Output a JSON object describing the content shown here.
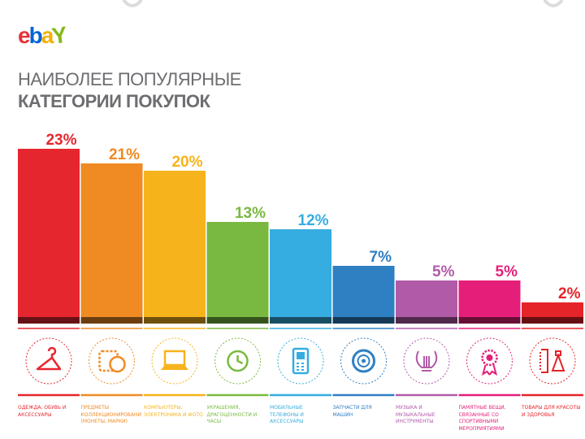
{
  "brand": {
    "logo_letters": [
      "e",
      "b",
      "a",
      "Y"
    ],
    "colors": [
      "#e53238",
      "#0064d2",
      "#f5af02",
      "#86b817"
    ]
  },
  "title": {
    "line1": "НАИБОЛЕЕ ПОПУЛЯРНЫЕ",
    "line2": "КАТЕГОРИИ ПОКУПОК"
  },
  "chart_data": {
    "type": "bar",
    "title": "НАИБОЛЕЕ ПОПУЛЯРНЫЕ КАТЕГОРИИ ПОКУПОК",
    "xlabel": "",
    "ylabel": "",
    "ylim": [
      0,
      23
    ],
    "grid": false,
    "legend": "none",
    "unit": "%",
    "categories": [
      "ОДЕЖДА, ОБУВЬ И АКСЕССУАРЫ",
      "ПРЕДМЕТЫ КОЛЛЕКЦИОНИРОВАНИЯ (МОНЕТЫ, МАРКИ)",
      "КОМПЬЮТЕРЫ, ЭЛЕКТРОНИКА И ФОТО",
      "УКРАШЕНИЯ, ДРАГОЦЕННОСТИ И ЧАСЫ",
      "МОБИЛЬНЫЕ ТЕЛЕФОНЫ И АКСЕССУАРЫ",
      "ЗАПЧАСТИ ДЛЯ МАШИН",
      "МУЗЫКА И МУЗЫКАЛЬНЫЕ ИНСТРУМЕНТЫ",
      "ПАМЯТНЫЕ ВЕЩИ, СВЯЗАННЫЕ СО СПОРТИВНЫМИ МЕРОПРИЯТИЯМИ",
      "ТОВАРЫ ДЛЯ КРАСОТЫ И ЗДОРОВЬЯ"
    ],
    "values": [
      23,
      21,
      20,
      13,
      12,
      7,
      5,
      5,
      2
    ],
    "labels": [
      "23%",
      "21%",
      "20%",
      "13%",
      "12%",
      "7%",
      "5%",
      "5%",
      "2%"
    ],
    "colors": [
      "#e6262e",
      "#f08a22",
      "#f7b31c",
      "#7ab940",
      "#35ade0",
      "#2f7fc3",
      "#b15ba8",
      "#e51f79",
      "#e5242a"
    ],
    "icons": [
      "hanger-icon",
      "stamp-coin-icon",
      "laptop-icon",
      "clock-icon",
      "mobile-phone-icon",
      "wheel-icon",
      "lyre-icon",
      "medal-icon",
      "comb-perfume-icon"
    ]
  }
}
